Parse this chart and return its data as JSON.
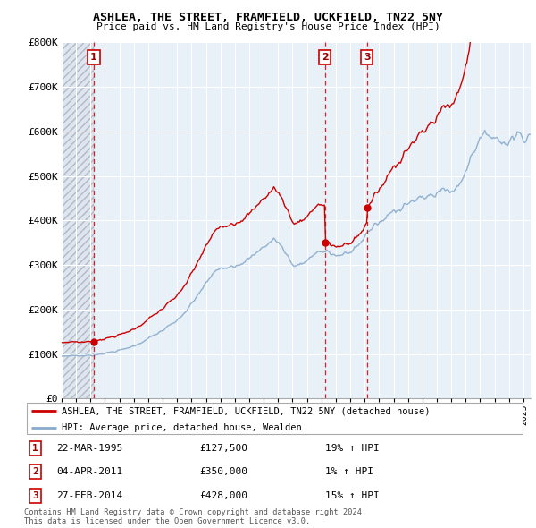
{
  "title": "ASHLEA, THE STREET, FRAMFIELD, UCKFIELD, TN22 5NY",
  "subtitle": "Price paid vs. HM Land Registry's House Price Index (HPI)",
  "sale_info": [
    {
      "label": "1",
      "date": "22-MAR-1995",
      "price": "£127,500",
      "pct": "19% ↑ HPI"
    },
    {
      "label": "2",
      "date": "04-APR-2011",
      "price": "£350,000",
      "pct": "1% ↑ HPI"
    },
    {
      "label": "3",
      "date": "27-FEB-2014",
      "price": "£428,000",
      "pct": "15% ↑ HPI"
    }
  ],
  "legend_line1": "ASHLEA, THE STREET, FRAMFIELD, UCKFIELD, TN22 5NY (detached house)",
  "legend_line2": "HPI: Average price, detached house, Wealden",
  "footnote": "Contains HM Land Registry data © Crown copyright and database right 2024.\nThis data is licensed under the Open Government Licence v3.0.",
  "price_line_color": "#cc0000",
  "hpi_line_color": "#88aacc",
  "sale_marker_color": "#cc0000",
  "dashed_line_color": "#cc0000",
  "grid_color": "#cccccc",
  "ylim": [
    0,
    800000
  ],
  "yticks": [
    0,
    100000,
    200000,
    300000,
    400000,
    500000,
    600000,
    700000,
    800000
  ],
  "ytick_labels": [
    "£0",
    "£100K",
    "£200K",
    "£300K",
    "£400K",
    "£500K",
    "£600K",
    "£700K",
    "£800K"
  ],
  "xstart": 1993.0,
  "xend": 2025.5,
  "sale_years": [
    1995.22,
    2011.25,
    2014.15
  ],
  "sale_prices": [
    127500,
    350000,
    428000
  ],
  "sale_labels": [
    "1",
    "2",
    "3"
  ]
}
